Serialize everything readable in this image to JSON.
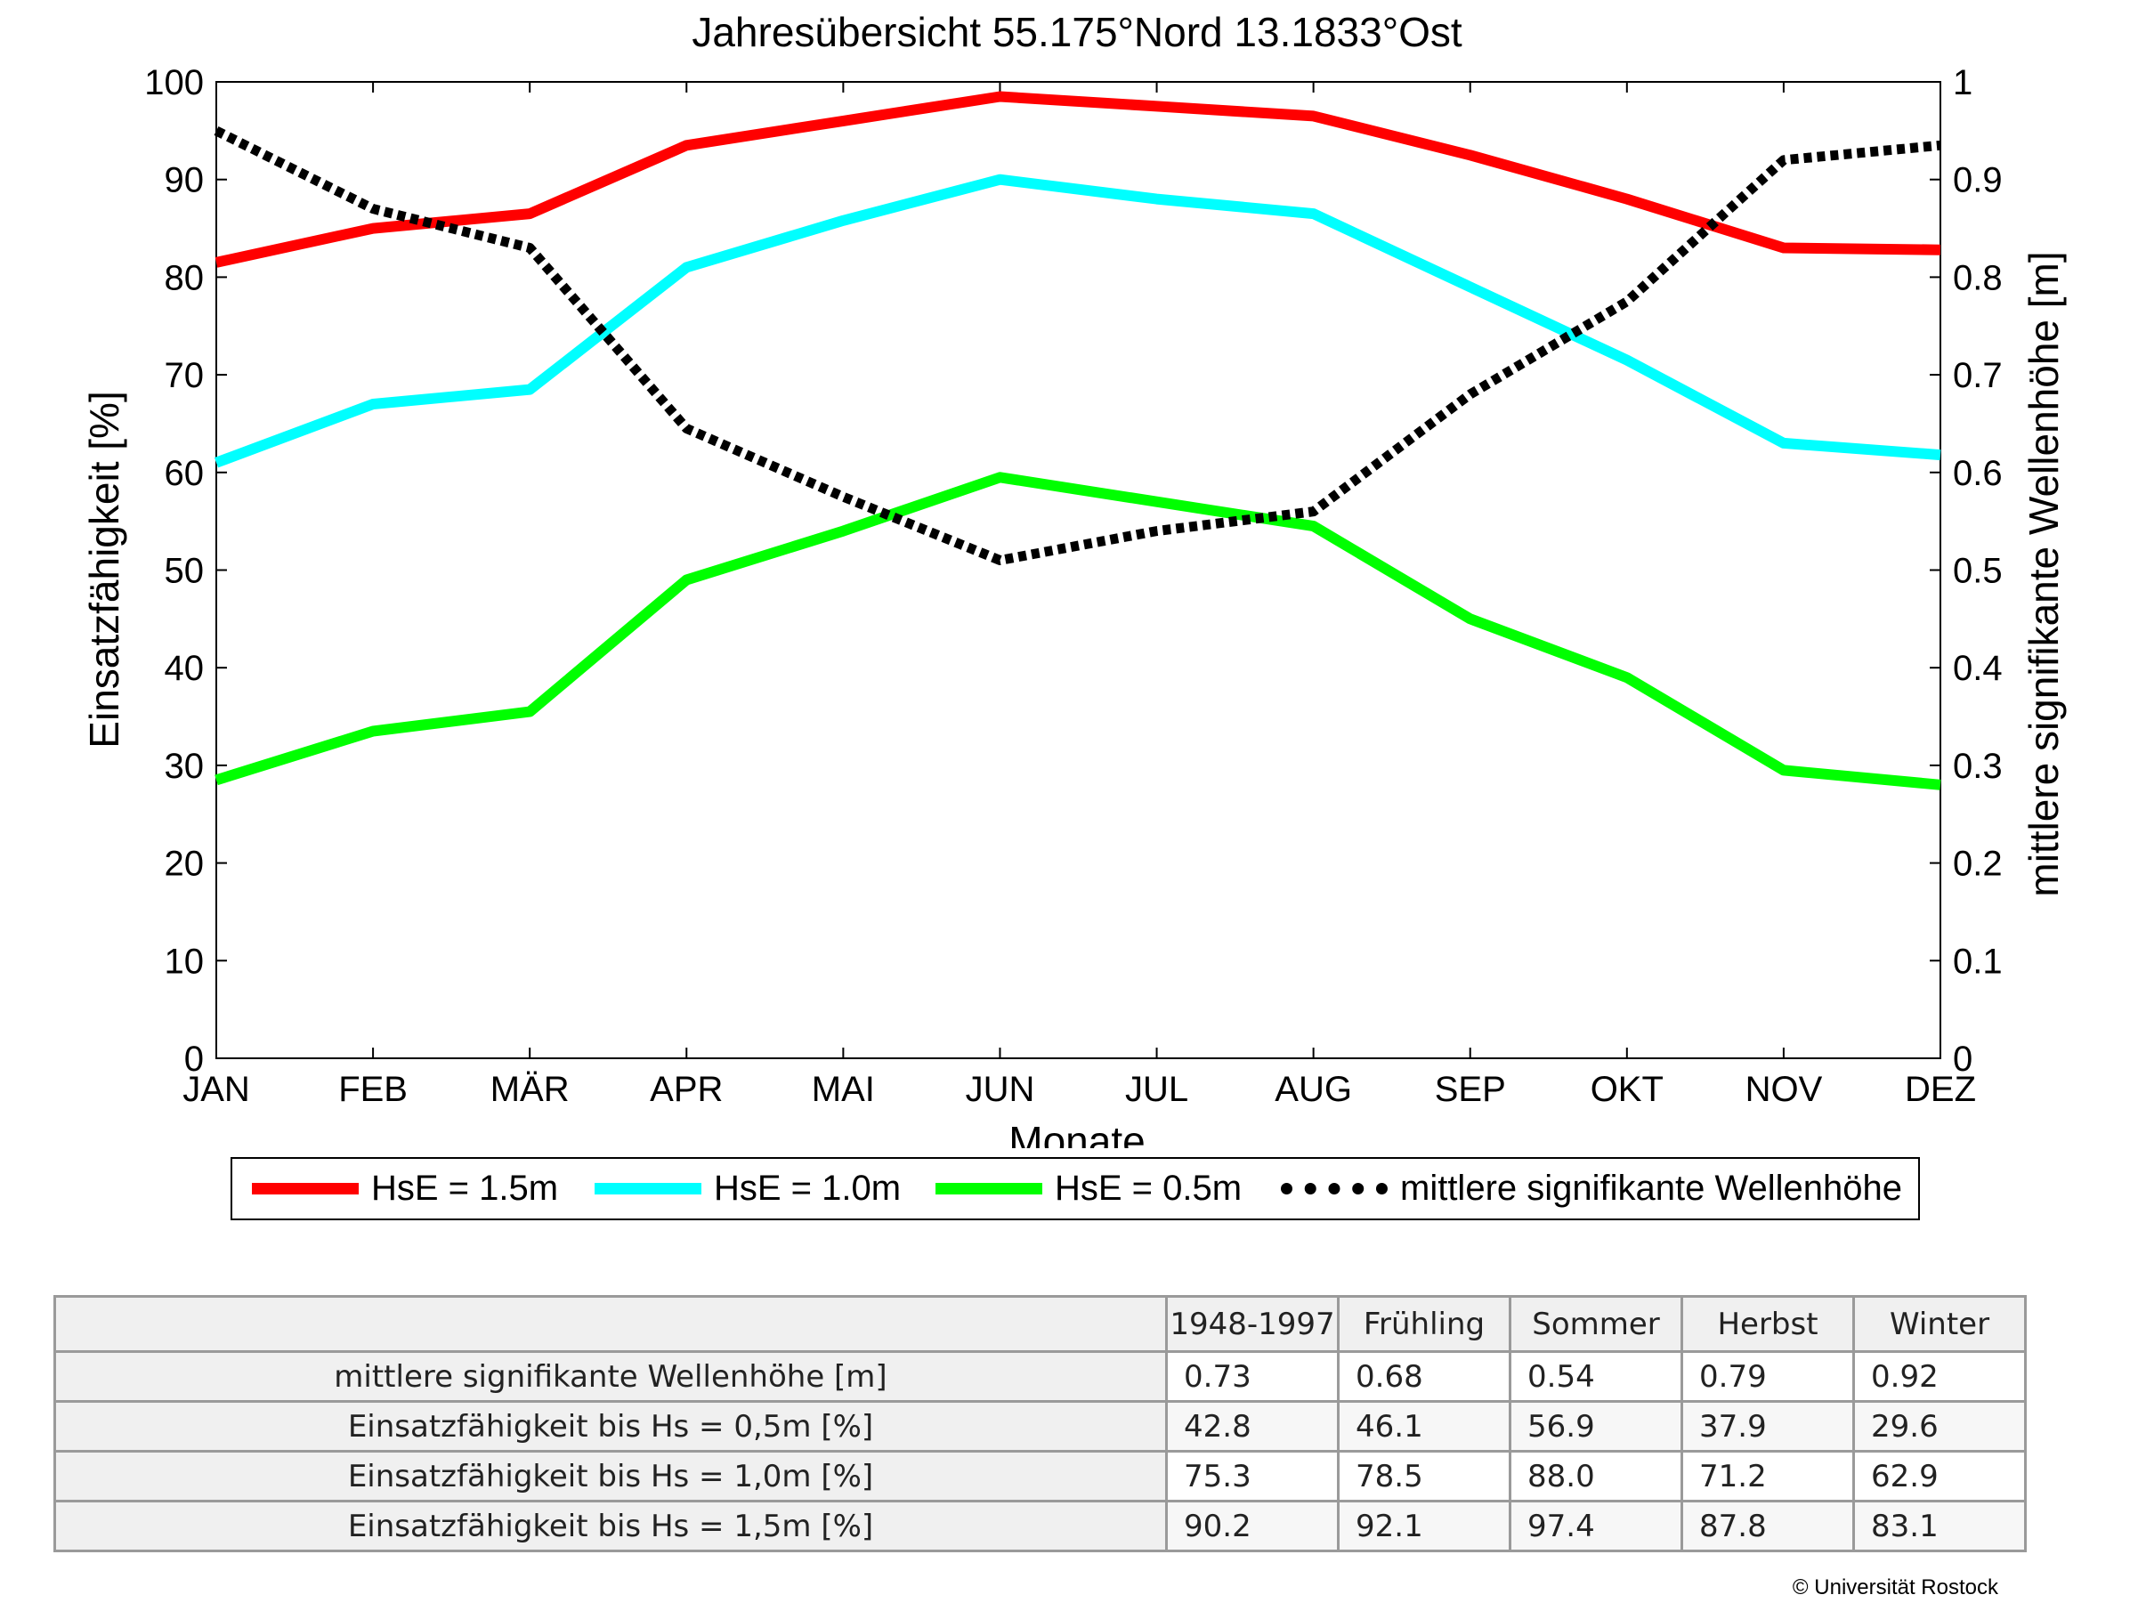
{
  "chart_data": {
    "type": "line",
    "title": "Jahresübersicht  55.175°Nord  13.1833°Ost",
    "xlabel": "Monate",
    "ylabel": "Einsatzfähigkeit [%]",
    "y2label": "mittlere signifikante Wellenhöhe [m]",
    "categories": [
      "JAN",
      "FEB",
      "MÄR",
      "APR",
      "MAI",
      "JUN",
      "JUL",
      "AUG",
      "SEP",
      "OKT",
      "NOV",
      "DEZ"
    ],
    "ylim": [
      0,
      100
    ],
    "y2lim": [
      0,
      1
    ],
    "yticks": [
      "0",
      "10",
      "20",
      "30",
      "40",
      "50",
      "60",
      "70",
      "80",
      "90",
      "100"
    ],
    "y2ticks": [
      "0",
      "0.1",
      "0.2",
      "0.3",
      "0.4",
      "0.5",
      "0.6",
      "0.7",
      "0.8",
      "0.9",
      "1"
    ],
    "grid": false,
    "legend_position": "bottom",
    "series": [
      {
        "name": "HsE = 1.5m",
        "axis": "left",
        "color": "#ff0000",
        "style": "solid",
        "values": [
          81.5,
          85.0,
          86.5,
          93.5,
          96.0,
          98.5,
          97.5,
          96.5,
          92.5,
          88.0,
          83.0,
          82.8
        ]
      },
      {
        "name": "HsE = 1.0m",
        "axis": "left",
        "color": "#00ffff",
        "style": "solid",
        "values": [
          61.0,
          67.0,
          68.5,
          81.0,
          85.8,
          90.0,
          88.0,
          86.5,
          79.0,
          71.5,
          63.0,
          61.8
        ]
      },
      {
        "name": "HsE = 0.5m",
        "axis": "left",
        "color": "#00ff00",
        "style": "solid",
        "values": [
          28.5,
          33.5,
          35.5,
          49.0,
          54.0,
          59.5,
          57.0,
          54.5,
          45.0,
          39.0,
          29.5,
          28.0
        ]
      },
      {
        "name": "mittlere signifikante Wellenhöhe",
        "axis": "right",
        "color": "#000000",
        "style": "dotted",
        "values": [
          0.95,
          0.87,
          0.83,
          0.645,
          0.575,
          0.51,
          0.54,
          0.56,
          0.68,
          0.775,
          0.92,
          0.935
        ]
      }
    ]
  },
  "table": {
    "corner": "",
    "columns": [
      "1948-1997",
      "Frühling",
      "Sommer",
      "Herbst",
      "Winter"
    ],
    "rows": [
      {
        "label": "mittlere signifikante Wellenhöhe [m]",
        "values": [
          "0.73",
          "0.68",
          "0.54",
          "0.79",
          "0.92"
        ]
      },
      {
        "label": "Einsatzfähigkeit bis Hs = 0,5m [%]",
        "values": [
          "42.8",
          "46.1",
          "56.9",
          "37.9",
          "29.6"
        ]
      },
      {
        "label": "Einsatzfähigkeit bis Hs = 1,0m [%]",
        "values": [
          "75.3",
          "78.5",
          "88.0",
          "71.2",
          "62.9"
        ]
      },
      {
        "label": "Einsatzfähigkeit bis Hs = 1,5m [%]",
        "values": [
          "90.2",
          "92.1",
          "97.4",
          "87.8",
          "83.1"
        ]
      }
    ]
  },
  "copyright": "© Universität Rostock"
}
